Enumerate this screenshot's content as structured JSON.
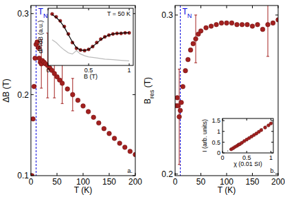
{
  "chart_data": [
    {
      "type": "scatter",
      "xlabel": "T (K)",
      "ylabel": [
        {
          "t": "ΔB (T)"
        }
      ],
      "xlim": [
        0,
        200
      ],
      "ylim": [
        0.1,
        0.31
      ],
      "xticks": [
        0,
        50,
        100,
        150,
        200
      ],
      "yticks": [
        0.1,
        0.2,
        0.3
      ],
      "panel_label": "a.",
      "annotations": [
        {
          "x": 10,
          "text": [
            {
              "t": "T"
            },
            {
              "t": "N",
              "sub": true
            }
          ],
          "color": "#0000dd",
          "line_style": "dashed"
        }
      ],
      "series": [
        {
          "color": "#a3201f",
          "marker": "circle",
          "x": [
            2,
            4,
            6,
            8,
            10,
            12,
            14,
            16,
            18,
            20,
            22,
            25,
            28,
            32,
            36,
            40,
            45,
            50,
            55,
            60,
            70,
            80,
            90,
            100,
            110,
            120,
            130,
            140,
            150,
            160,
            170,
            180,
            190,
            200
          ],
          "values": [
            0.1,
            0.17,
            0.21,
            0.245,
            0.262,
            0.265,
            0.258,
            0.245,
            0.24,
            0.238,
            0.242,
            0.24,
            0.238,
            0.236,
            0.233,
            0.23,
            0.226,
            0.222,
            0.218,
            0.214,
            0.207,
            0.2,
            0.193,
            0.186,
            0.179,
            0.172,
            0.165,
            0.158,
            0.152,
            0.146,
            0.14,
            0.135,
            0.13,
            0.126
          ],
          "errors": [
            null,
            null,
            null,
            null,
            null,
            null,
            null,
            null,
            null,
            0.03,
            null,
            null,
            null,
            0.04,
            null,
            null,
            0.03,
            null,
            null,
            0.025,
            null,
            0.02,
            null,
            null,
            null,
            null,
            null,
            null,
            null,
            null,
            null,
            null,
            null,
            null
          ]
        }
      ]
    },
    {
      "type": "scatter",
      "xlabel": "B (T)",
      "ylabel": [
        {
          "t": "dP/dB (a.u.)"
        }
      ],
      "xlim": [
        0,
        1.05
      ],
      "ylim": [
        0,
        1
      ],
      "xticks": [
        0,
        0.5,
        1
      ],
      "tick_labels": "x",
      "annotations": [
        {
          "text": [
            {
              "t": "T = 50 K"
            }
          ]
        }
      ],
      "series": [
        {
          "type": "line",
          "color": "#bbbbbb",
          "line_style": "solid",
          "x": [
            0.05,
            0.1,
            0.15,
            0.2,
            0.25,
            0.3,
            0.35,
            0.4,
            0.45,
            0.5,
            0.6,
            0.7,
            0.8,
            0.9,
            1.0
          ],
          "values": [
            0.45,
            0.4,
            0.33,
            0.27,
            0.22,
            0.2,
            0.26,
            0.2,
            0.17,
            0.15,
            0.13,
            0.11,
            0.1,
            0.09,
            0.08
          ]
        },
        {
          "color": "#a3201f",
          "marker": "circle",
          "x": [
            0.05,
            0.1,
            0.15,
            0.2,
            0.25,
            0.3,
            0.35,
            0.4,
            0.45,
            0.5,
            0.55,
            0.6,
            0.65,
            0.7,
            0.75,
            0.8,
            0.85,
            0.9,
            0.95,
            1.0
          ],
          "values": [
            0.9,
            0.85,
            0.78,
            0.68,
            0.55,
            0.4,
            0.3,
            0.27,
            0.26,
            0.28,
            0.33,
            0.4,
            0.46,
            0.5,
            0.53,
            0.55,
            0.56,
            0.56,
            0.57,
            0.57
          ]
        },
        {
          "type": "line",
          "color": "#000000",
          "line_style": "solid",
          "x": [
            0.05,
            0.1,
            0.15,
            0.2,
            0.25,
            0.3,
            0.35,
            0.4,
            0.45,
            0.5,
            0.55,
            0.6,
            0.65,
            0.7,
            0.75,
            0.8,
            0.85,
            0.9,
            0.95,
            1.0
          ],
          "values": [
            0.89,
            0.84,
            0.77,
            0.67,
            0.54,
            0.41,
            0.31,
            0.27,
            0.26,
            0.28,
            0.33,
            0.39,
            0.45,
            0.5,
            0.53,
            0.55,
            0.56,
            0.565,
            0.57,
            0.57
          ]
        }
      ]
    },
    {
      "type": "scatter",
      "xlabel": "T (K)",
      "ylabel": [
        {
          "t": "B"
        },
        {
          "t": "res",
          "sub": true
        },
        {
          "t": " (T)"
        }
      ],
      "xlim": [
        0,
        200
      ],
      "ylim": [
        0.199,
        0.306
      ],
      "xticks": [
        0,
        50,
        100,
        150,
        200
      ],
      "yticks": [
        0.2,
        0.3
      ],
      "panel_label": "b.",
      "annotations": [
        {
          "x": 10,
          "text": [
            {
              "t": "T"
            },
            {
              "t": "N",
              "sub": true
            }
          ],
          "color": "#0000dd",
          "line_style": "dashed"
        }
      ],
      "series": [
        {
          "color": "#a3201f",
          "marker": "circle",
          "x": [
            2,
            4,
            6,
            8,
            10,
            12,
            15,
            20,
            25,
            30,
            35,
            40,
            45,
            50,
            60,
            70,
            80,
            90,
            100,
            110,
            120,
            130,
            140,
            150,
            160,
            170,
            180,
            190,
            200
          ],
          "values": [
            0.243,
            0.248,
            0.243,
            0.236,
            0.24,
            0.245,
            0.255,
            0.265,
            0.272,
            0.278,
            0.282,
            0.285,
            0.288,
            0.29,
            0.292,
            0.293,
            0.294,
            0.295,
            0.295,
            0.295,
            0.294,
            0.294,
            0.294,
            0.293,
            0.294,
            0.291,
            0.294,
            0.295,
            0.297
          ],
          "errors": [
            null,
            null,
            null,
            0.03,
            null,
            null,
            null,
            null,
            null,
            null,
            null,
            0.015,
            null,
            null,
            null,
            null,
            null,
            null,
            null,
            null,
            null,
            null,
            null,
            null,
            null,
            null,
            0.02,
            null,
            null
          ]
        }
      ]
    },
    {
      "type": "scatter",
      "xlabel": "χ (0.01 SI)",
      "ylabel": [
        {
          "t": "I (arb. units)"
        }
      ],
      "xlim": [
        0,
        1.05
      ],
      "ylim": [
        0,
        1.6
      ],
      "xticks": [
        0,
        0.5,
        1
      ],
      "yticks": [
        0,
        0.5,
        1,
        1.5
      ],
      "series": [
        {
          "type": "line",
          "color": "#555555",
          "line_style": "dotted",
          "x": [
            0.1,
            1.05
          ],
          "values": [
            0.08,
            1.46
          ]
        },
        {
          "color": "#a3201f",
          "marker": "circle",
          "x": [
            0.18,
            0.22,
            0.26,
            0.3,
            0.33,
            0.36,
            0.4,
            0.45,
            0.5,
            0.55,
            0.6,
            0.65,
            0.7,
            0.75,
            0.8,
            0.88,
            0.95,
            1.0
          ],
          "values": [
            0.17,
            0.22,
            0.28,
            0.33,
            0.38,
            0.41,
            0.47,
            0.55,
            0.62,
            0.69,
            0.76,
            0.83,
            0.9,
            0.98,
            1.06,
            1.18,
            1.28,
            1.37
          ]
        }
      ]
    }
  ]
}
